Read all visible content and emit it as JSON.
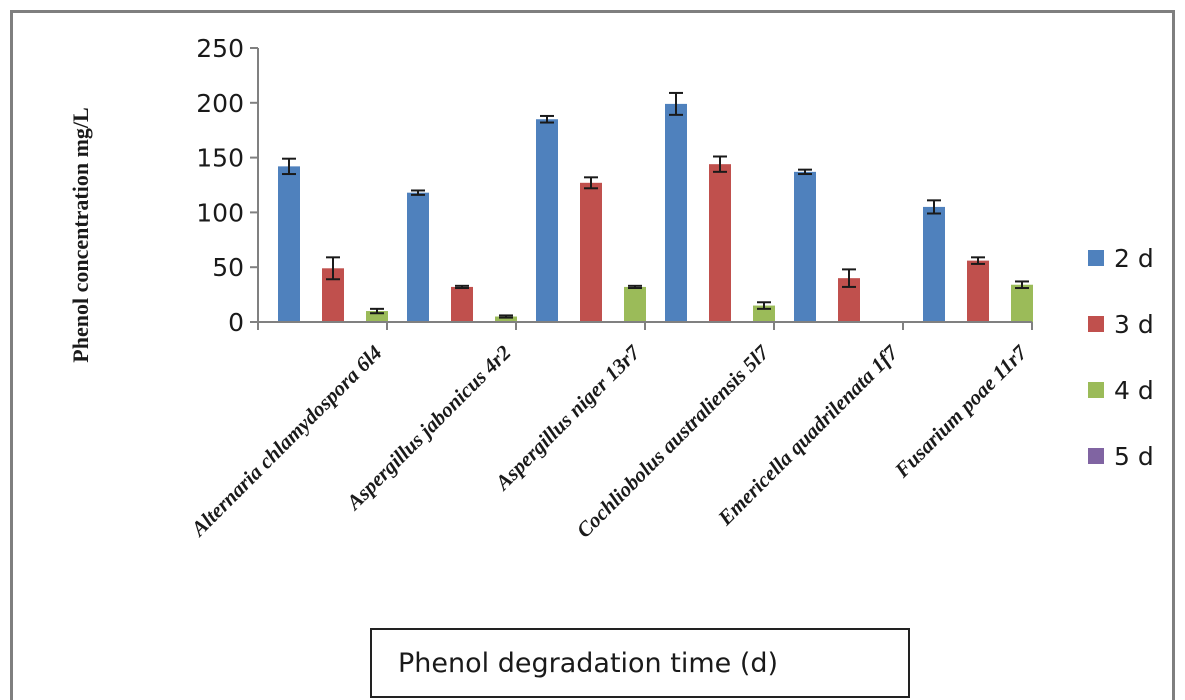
{
  "chart_data": {
    "type": "bar",
    "title": "",
    "xlabel": "Phenol degradation time (d)",
    "ylabel": "Phenol concentration mg/L",
    "ylim": [
      0,
      250
    ],
    "yticks": [
      0,
      50,
      100,
      150,
      200,
      250
    ],
    "categories": [
      "Alternaria chlamydospora 6l4",
      "Aspergillus jabonicus 4r2",
      "Aspergillus niger 13r7",
      "Cochliobolus australiensis 5l7",
      "Emericella quadrilenata 1f7",
      "Fusarium poae 11r7"
    ],
    "series": [
      {
        "name": "2 d",
        "color": "#4f81bd",
        "values": [
          142,
          118,
          185,
          199,
          137,
          105
        ],
        "errors": [
          7,
          2,
          3,
          10,
          2,
          6
        ]
      },
      {
        "name": "3 d",
        "color": "#c0504d",
        "values": [
          49,
          32,
          127,
          144,
          40,
          56
        ],
        "errors": [
          10,
          1,
          5,
          7,
          8,
          3
        ]
      },
      {
        "name": "4 d",
        "color": "#9bbb59",
        "values": [
          10,
          5,
          32,
          15,
          0,
          34
        ],
        "errors": [
          2,
          1,
          1,
          3,
          0,
          3
        ]
      },
      {
        "name": "5 d",
        "color": "#8064a2",
        "values": [
          0,
          0,
          0,
          0,
          0,
          0
        ],
        "errors": [
          0,
          0,
          0,
          0,
          0,
          0
        ]
      }
    ],
    "legend_position": "right",
    "grid": false
  }
}
